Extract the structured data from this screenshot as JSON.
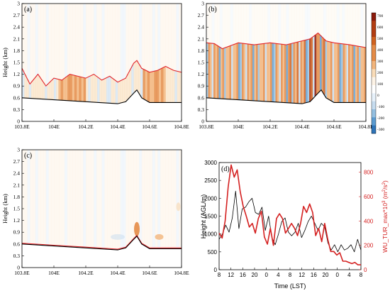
{
  "colors": {
    "red_line": "#e0242a",
    "black_line": "#000000",
    "warm": [
      "#fdf3e6",
      "#f9dcb8",
      "#f2b57c",
      "#e48b46",
      "#d0621f",
      "#b23d12",
      "#8b1a0b"
    ],
    "cool": [
      "#e7f1fa",
      "#c6dcef",
      "#93bfe0",
      "#5b9bd0",
      "#2e74b8"
    ]
  },
  "chart_data": [
    {
      "panel_label": "(a)",
      "type": "heatmap",
      "ylabel": "Height (km)",
      "ylim": [
        0,
        3
      ],
      "xlim": [
        103.8,
        104.8
      ],
      "yticks": [
        "0",
        "0.3",
        "0.6",
        "0.9",
        "1.2",
        "1.5",
        "1.8",
        "2.1",
        "2.4",
        "2.7",
        "3"
      ],
      "xticks": [
        "103.8E",
        "104E",
        "104.2E",
        "104.4E",
        "104.6E",
        "104.8E"
      ],
      "terrain": {
        "x": [
          103.8,
          104.0,
          104.2,
          104.4,
          104.45,
          104.5,
          104.52,
          104.55,
          104.6,
          104.7,
          104.8
        ],
        "y": [
          0.6,
          0.55,
          0.5,
          0.45,
          0.5,
          0.72,
          0.8,
          0.6,
          0.48,
          0.48,
          0.48
        ]
      },
      "red_line": {
        "x": [
          103.8,
          103.85,
          103.9,
          103.95,
          104.0,
          104.05,
          104.1,
          104.15,
          104.2,
          104.25,
          104.3,
          104.35,
          104.4,
          104.45,
          104.5,
          104.52,
          104.55,
          104.6,
          104.65,
          104.7,
          104.75,
          104.8
        ],
        "y": [
          1.35,
          0.95,
          1.2,
          0.9,
          1.1,
          1.05,
          1.2,
          1.15,
          1.1,
          1.2,
          1.05,
          1.15,
          1.0,
          1.1,
          1.48,
          1.55,
          1.35,
          1.25,
          1.3,
          1.4,
          1.3,
          1.25
        ]
      }
    },
    {
      "panel_label": "(b)",
      "type": "heatmap",
      "ylim": [
        0,
        3
      ],
      "xlim": [
        103.8,
        104.8
      ],
      "yticks": [
        "0",
        "0.3",
        "0.6",
        "0.9",
        "1.2",
        "1.5",
        "1.8",
        "2.1",
        "2.4",
        "2.7",
        "3"
      ],
      "xticks": [
        "103.8E",
        "104E",
        "104.2E",
        "104.4E",
        "104.6E",
        "104.8E"
      ],
      "colorbar_ticks": [
        "700",
        "600",
        "500",
        "400",
        "300",
        "200",
        "100",
        "0",
        "-100",
        "-200",
        "-300"
      ],
      "terrain": {
        "x": [
          103.8,
          104.0,
          104.2,
          104.4,
          104.45,
          104.5,
          104.52,
          104.55,
          104.6,
          104.7,
          104.8
        ],
        "y": [
          0.6,
          0.55,
          0.5,
          0.45,
          0.5,
          0.72,
          0.8,
          0.6,
          0.48,
          0.48,
          0.48
        ]
      },
      "red_line": {
        "x": [
          103.8,
          103.85,
          103.9,
          104.0,
          104.1,
          104.2,
          104.3,
          104.4,
          104.45,
          104.5,
          104.55,
          104.6,
          104.7,
          104.8
        ],
        "y": [
          2.0,
          1.98,
          1.85,
          2.0,
          1.95,
          2.0,
          1.95,
          2.05,
          2.1,
          2.25,
          2.05,
          2.0,
          1.95,
          1.88
        ]
      }
    },
    {
      "panel_label": "(c)",
      "type": "heatmap",
      "ylabel": "Height (km)",
      "ylim": [
        0,
        3
      ],
      "xlim": [
        103.8,
        104.8
      ],
      "yticks": [
        "0",
        "0.3",
        "0.6",
        "0.9",
        "1.2",
        "1.5",
        "1.8",
        "2.1",
        "2.4",
        "2.7",
        "3"
      ],
      "xticks": [
        "103.8E",
        "104E",
        "104.2E",
        "104.4E",
        "104.6E",
        "104.8E"
      ],
      "terrain": {
        "x": [
          103.8,
          104.0,
          104.2,
          104.4,
          104.45,
          104.5,
          104.52,
          104.55,
          104.6,
          104.7,
          104.8
        ],
        "y": [
          0.6,
          0.55,
          0.5,
          0.45,
          0.5,
          0.72,
          0.8,
          0.6,
          0.48,
          0.48,
          0.48
        ]
      },
      "red_line": {
        "x": [
          103.8,
          104.0,
          104.2,
          104.4,
          104.45,
          104.5,
          104.52,
          104.55,
          104.6,
          104.7,
          104.8
        ],
        "y": [
          0.62,
          0.57,
          0.52,
          0.47,
          0.52,
          0.74,
          0.82,
          0.62,
          0.5,
          0.5,
          0.5
        ]
      }
    },
    {
      "panel_label": "(d)",
      "type": "line",
      "xlabel": "Time (LST)",
      "ylabel": "Height (AGL/m)",
      "y2label_html": "WU_TUR_max*10³ (m²/s²)",
      "ylim": [
        0,
        3000
      ],
      "y2lim": [
        0,
        880
      ],
      "yticks": [
        "0",
        "500",
        "1000",
        "1500",
        "2000",
        "2500",
        "3000"
      ],
      "y2ticks": [
        "0",
        "200",
        "400",
        "600",
        "800"
      ],
      "xtick_labels": [
        "8",
        "12",
        "16",
        "20",
        "0",
        "4",
        "8",
        "12",
        "16",
        "20",
        "0",
        "4",
        "8"
      ],
      "series": [
        {
          "axis": "left",
          "color": "#000000",
          "values": [
            850,
            1000,
            1250,
            1050,
            1450,
            2200,
            1150,
            1700,
            1750,
            1900,
            2000,
            1600,
            1550,
            1750,
            1100,
            1500,
            900,
            700,
            1000,
            1350,
            1450,
            1050,
            950,
            1050,
            1300,
            900,
            1100,
            1350,
            1500,
            1300,
            1100,
            1300,
            1200,
            750,
            550,
            700,
            500,
            700,
            550,
            600,
            700,
            500,
            850,
            550
          ]
        },
        {
          "axis": "right",
          "color": "#d42020",
          "values": [
            300,
            260,
            400,
            680,
            860,
            760,
            820,
            640,
            520,
            440,
            350,
            380,
            300,
            420,
            480,
            270,
            210,
            340,
            200,
            420,
            460,
            420,
            300,
            340,
            380,
            340,
            280,
            380,
            520,
            470,
            540,
            470,
            280,
            340,
            230,
            380,
            250,
            150,
            150,
            120,
            140,
            70,
            70,
            60,
            50,
            60,
            40,
            40
          ]
        }
      ]
    }
  ]
}
